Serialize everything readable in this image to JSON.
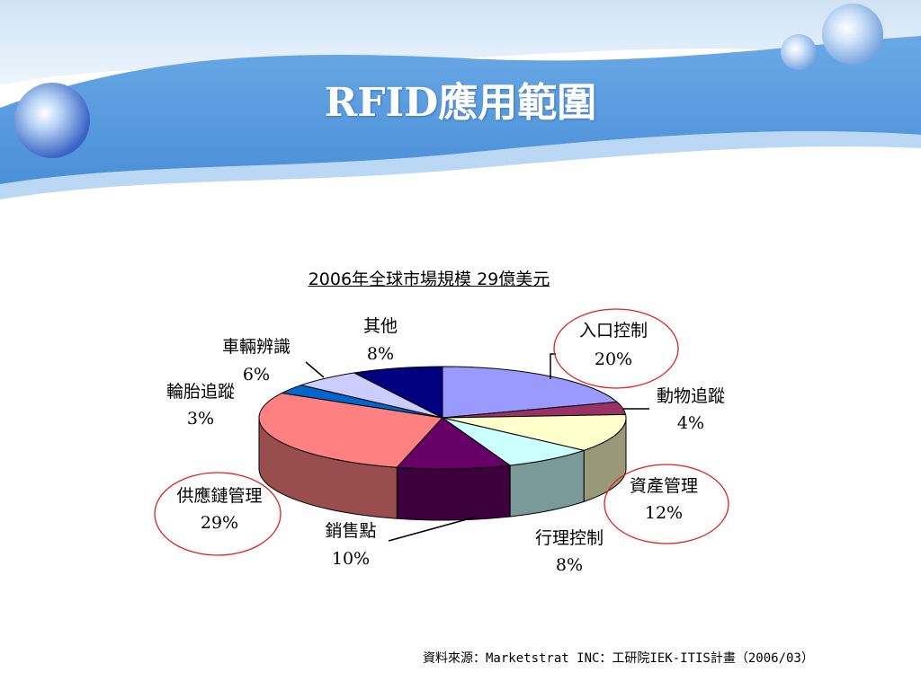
{
  "header": {
    "title": "RFID應用範圍"
  },
  "footer": {
    "source": "資料來源：Marketstrat INC：工研院IEK-ITIS計畫（2006/03）"
  },
  "chart_data": {
    "type": "pie",
    "title": "2006年全球市場規模  29億美元",
    "unit": "%",
    "highlighted": [
      "入口控制",
      "資產管理",
      "供應鏈管理"
    ],
    "slices": [
      {
        "label": "入口控制",
        "value": 20,
        "value_text": "20%",
        "color": "#9999ff",
        "side": "#5c5c99"
      },
      {
        "label": "動物追蹤",
        "value": 4,
        "value_text": "4%",
        "color": "#993366",
        "side": "#5c1f3d"
      },
      {
        "label": "資產管理",
        "value": 12,
        "value_text": "12%",
        "color": "#ffffcc",
        "side": "#99997a"
      },
      {
        "label": "行理控制",
        "value": 8,
        "value_text": "8%",
        "color": "#ccffff",
        "side": "#7a9999"
      },
      {
        "label": "銷售點",
        "value": 10,
        "value_text": "10%",
        "color": "#660066",
        "side": "#3d003d"
      },
      {
        "label": "供應鏈管理",
        "value": 29,
        "value_text": "29%",
        "color": "#ff8080",
        "side": "#994d4d"
      },
      {
        "label": "輪胎追蹤",
        "value": 3,
        "value_text": "3%",
        "color": "#0066cc",
        "side": "#003d7a"
      },
      {
        "label": "車輛辨識",
        "value": 6,
        "value_text": "6%",
        "color": "#ccccff",
        "side": "#7a7a99"
      },
      {
        "label": "其他",
        "value": 8,
        "value_text": "8%",
        "color": "#000080",
        "side": "#00004d"
      }
    ]
  }
}
